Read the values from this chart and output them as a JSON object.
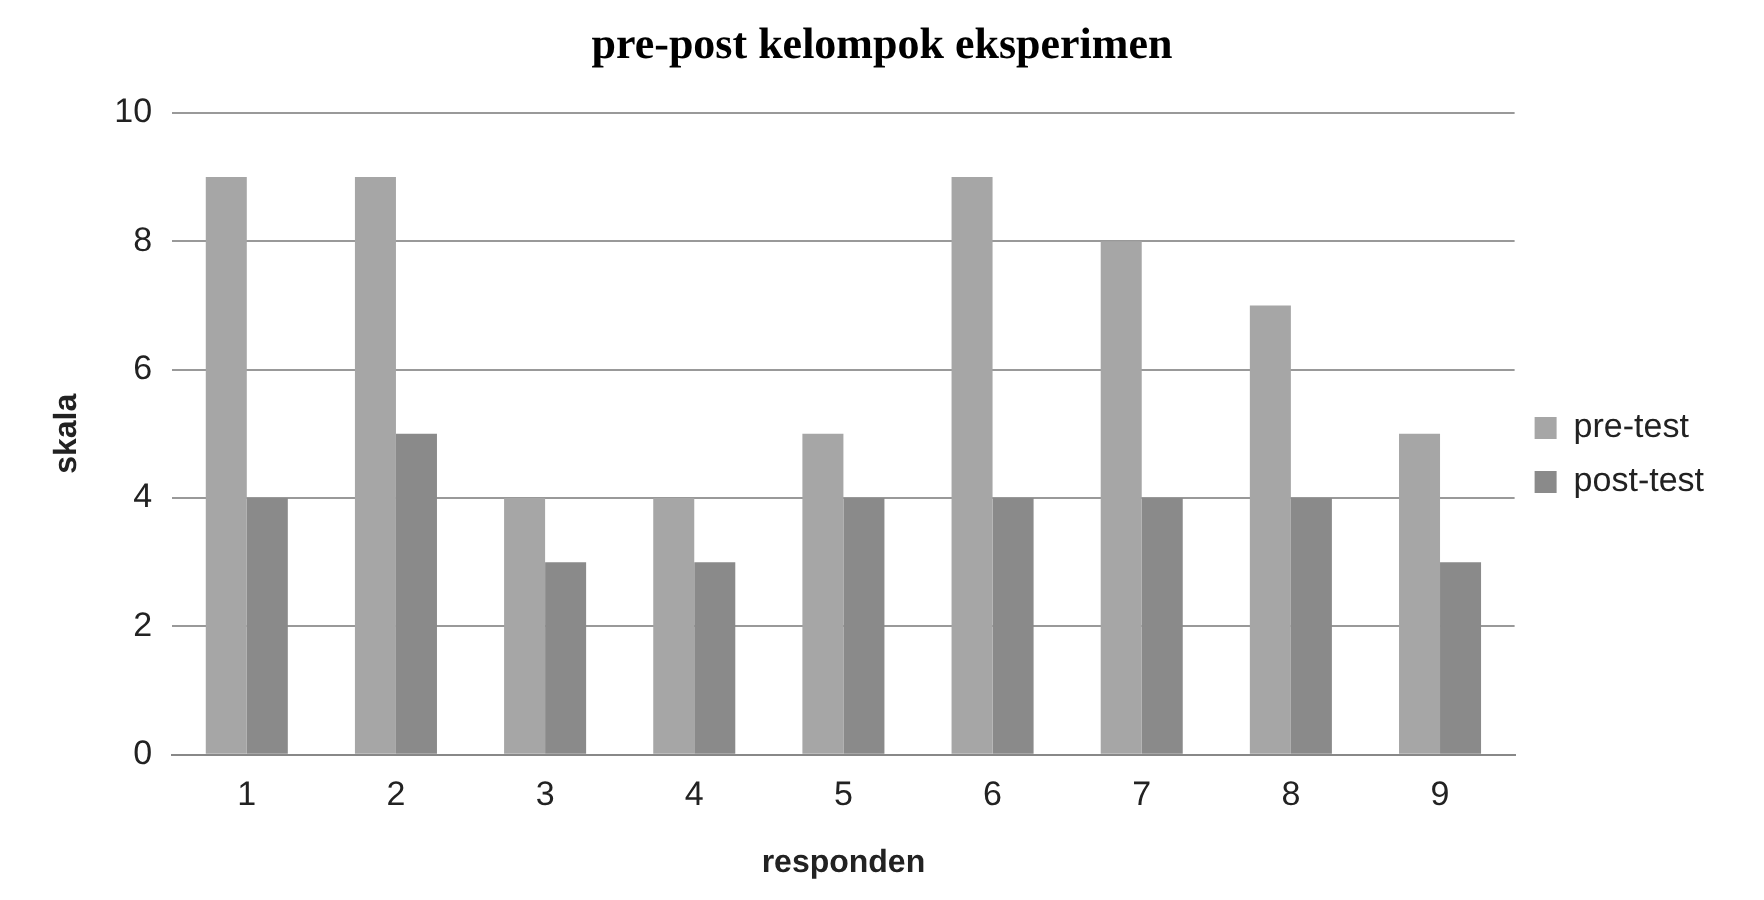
{
  "chart_data": {
    "type": "bar",
    "title": "pre-post kelompok eksperimen",
    "xlabel": "responden",
    "ylabel": "skala",
    "categories": [
      "1",
      "2",
      "3",
      "4",
      "5",
      "6",
      "7",
      "8",
      "9"
    ],
    "series": [
      {
        "name": "pre-test",
        "color": "#a6a6a6",
        "values": [
          9,
          9,
          4,
          4,
          5,
          9,
          8,
          7,
          5
        ]
      },
      {
        "name": "post-test",
        "color": "#8a8a8a",
        "values": [
          4,
          5,
          3,
          3,
          4,
          4,
          4,
          4,
          3
        ]
      }
    ],
    "ylim": [
      0,
      10
    ],
    "yticks": [
      0,
      2,
      4,
      6,
      8,
      10
    ],
    "grid": "y",
    "legend": "right"
  }
}
